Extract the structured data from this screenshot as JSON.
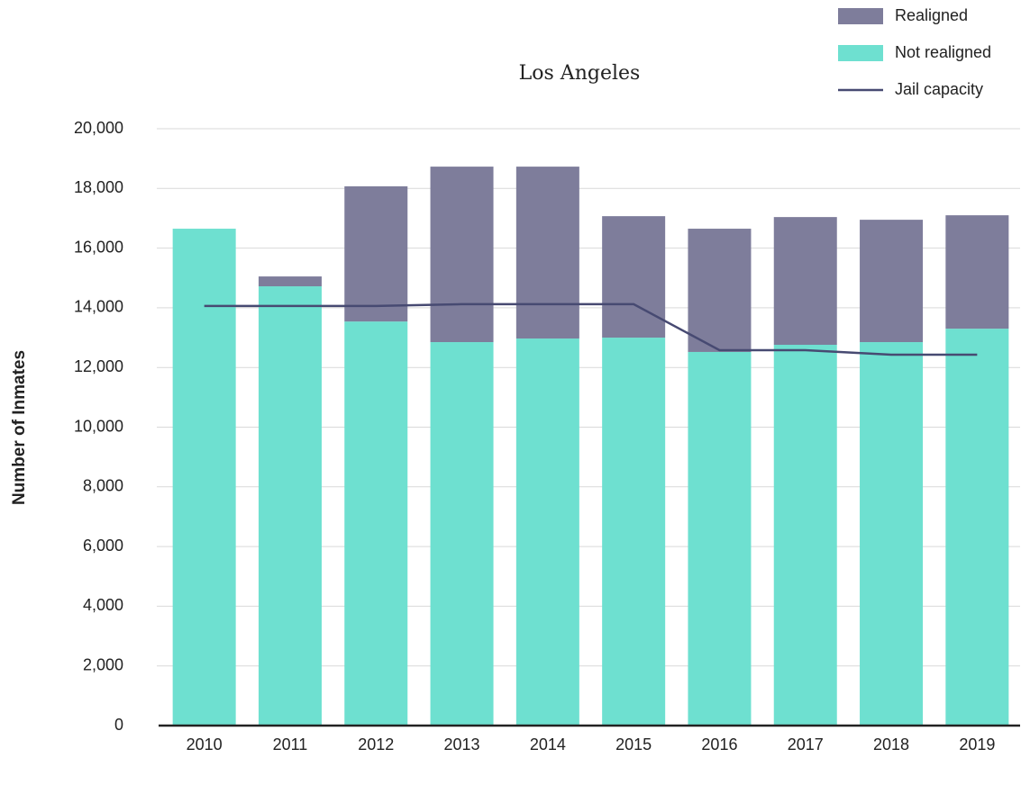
{
  "chart_data": {
    "type": "bar",
    "stacked": true,
    "title": "Los Angeles",
    "y_label": "Number of Inmates",
    "categories": [
      "2010",
      "2011",
      "2012",
      "2013",
      "2014",
      "2015",
      "2016",
      "2017",
      "2018",
      "2019"
    ],
    "series": [
      {
        "name": "Realigned",
        "type": "bar",
        "color": "#7e7d9b",
        "values": [
          0,
          330,
          4530,
          5880,
          5760,
          4070,
          4130,
          4280,
          4100,
          3800
        ]
      },
      {
        "name": "Not realigned",
        "type": "bar",
        "color": "#6ee0d0",
        "values": [
          16650,
          14720,
          13540,
          12850,
          12970,
          13000,
          12520,
          12760,
          12850,
          13300
        ]
      },
      {
        "name": "Jail capacity",
        "type": "line",
        "color": "#474a72",
        "values": [
          14060,
          14060,
          14060,
          14120,
          14120,
          14120,
          12580,
          12580,
          12430,
          12430
        ]
      }
    ],
    "ylim": [
      0,
      20000
    ],
    "yticks": [
      0,
      {
        "value": 2000,
        "label": "2,000"
      },
      {
        "value": 4000,
        "label": "4,000"
      },
      {
        "value": 6000,
        "label": "6,000"
      },
      {
        "value": 8000,
        "label": "8,000"
      },
      {
        "value": 10000,
        "label": "10,000"
      },
      {
        "value": 12000,
        "label": "12,000"
      },
      {
        "value": 14000,
        "label": "14,000"
      },
      {
        "value": 16000,
        "label": "16,000"
      },
      {
        "value": 18000,
        "label": "18,000"
      },
      {
        "value": 20000,
        "label": "20,000"
      }
    ],
    "grid": true,
    "legend": "top-right"
  }
}
